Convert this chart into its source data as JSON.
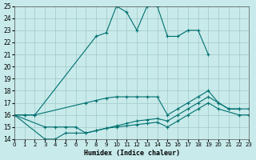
{
  "xlabel": "Humidex (Indice chaleur)",
  "bg_color": "#c8eaea",
  "grid_color": "#a0c8c8",
  "line_color": "#007070",
  "xlim": [
    0,
    23
  ],
  "ylim": [
    14,
    25
  ],
  "yticks": [
    14,
    15,
    16,
    17,
    18,
    19,
    20,
    21,
    22,
    23,
    24,
    25
  ],
  "xticks": [
    0,
    1,
    2,
    3,
    4,
    5,
    6,
    7,
    8,
    9,
    10,
    11,
    12,
    13,
    14,
    15,
    16,
    17,
    18,
    19,
    20,
    21,
    22,
    23
  ],
  "lines": [
    {
      "x": [
        0,
        1,
        2,
        8,
        9,
        10,
        11,
        12,
        13,
        14,
        15,
        16,
        17,
        18,
        19
      ],
      "y": [
        16,
        16,
        16,
        22.5,
        22.8,
        25,
        24.5,
        23,
        25,
        25,
        22.5,
        22.5,
        23,
        23,
        21
      ]
    },
    {
      "x": [
        0,
        1,
        2,
        7,
        8,
        9,
        10,
        11,
        12,
        13,
        14,
        15,
        16,
        17,
        18,
        19,
        20,
        21,
        22
      ],
      "y": [
        16,
        16,
        16,
        17,
        17.2,
        17.4,
        17.5,
        17.5,
        17.5,
        17.5,
        17.5,
        16,
        16.5,
        17,
        17.5,
        18,
        17,
        16.5,
        16.5
      ]
    },
    {
      "x": [
        0,
        3,
        4,
        5,
        6,
        7,
        8,
        9,
        10,
        11,
        12,
        13,
        14,
        15,
        16,
        17,
        18,
        19,
        20,
        21,
        22,
        23
      ],
      "y": [
        16,
        15,
        15,
        15,
        15,
        14.5,
        14.7,
        14.9,
        15.1,
        15.3,
        15.5,
        15.6,
        15.7,
        15.5,
        16,
        16.5,
        17,
        17.5,
        17,
        16.5,
        16.5,
        16.5
      ]
    },
    {
      "x": [
        0,
        3,
        4,
        5,
        6,
        7,
        8,
        9,
        10,
        11,
        12,
        13,
        14,
        15,
        16,
        17,
        18,
        19,
        20,
        22,
        23
      ],
      "y": [
        16,
        14,
        14,
        14.5,
        14.5,
        14.5,
        14.7,
        14.9,
        15,
        15.1,
        15.2,
        15.3,
        15.4,
        15,
        15.5,
        16,
        16.5,
        17,
        16.5,
        16,
        16
      ]
    }
  ]
}
